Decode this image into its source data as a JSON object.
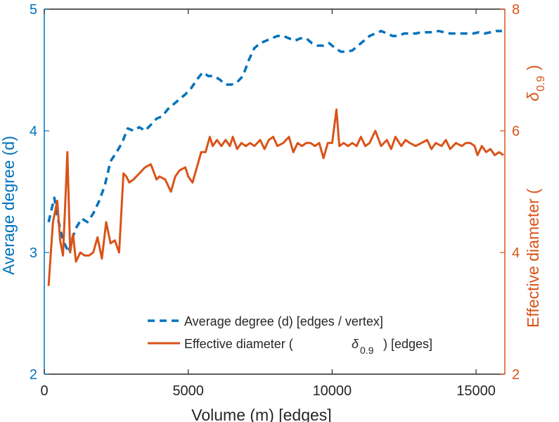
{
  "chart_data": {
    "type": "line",
    "xlabel": "Volume (m) [edges]",
    "ylabel_left": "Average degree (d)",
    "ylabel_right_prefix": "Effective diameter (",
    "ylabel_right_symbol": "δ",
    "ylabel_right_sub": "0.9",
    "ylabel_right_suffix": ")",
    "xlim": [
      0,
      16000
    ],
    "ylim_left": [
      2,
      5
    ],
    "ylim_right": [
      2,
      8
    ],
    "xticks": [
      0,
      5000,
      10000,
      15000
    ],
    "yticks_left": [
      2,
      3,
      4,
      5
    ],
    "yticks_right": [
      2,
      4,
      6,
      8
    ],
    "grid": false,
    "legend_position": "bottom-right",
    "colors": {
      "left": "#0072BD",
      "right": "#D95319",
      "axis": "#262626"
    },
    "series": [
      {
        "name": "Average degree (d) [edges / vertex]",
        "axis": "left",
        "style": "dashed",
        "color": "#0072BD",
        "x": [
          150,
          250,
          350,
          450,
          550,
          650,
          750,
          850,
          950,
          1100,
          1300,
          1500,
          1700,
          1900,
          2100,
          2300,
          2500,
          2700,
          2900,
          3100,
          3300,
          3500,
          3700,
          3900,
          4100,
          4300,
          4500,
          4700,
          4900,
          5100,
          5300,
          5500,
          5700,
          5900,
          6100,
          6300,
          6500,
          6700,
          6900,
          7100,
          7300,
          7500,
          7700,
          7900,
          8100,
          8300,
          8500,
          8700,
          8900,
          9100,
          9300,
          9500,
          9700,
          9900,
          10100,
          10300,
          10500,
          10700,
          10900,
          11100,
          11300,
          11500,
          11700,
          11900,
          12100,
          12300,
          12500,
          12700,
          12900,
          13100,
          13300,
          13500,
          13700,
          13900,
          14100,
          14300,
          14500,
          14700,
          14900,
          15100,
          15300,
          15500,
          15700,
          15900
        ],
        "y": [
          3.25,
          3.35,
          3.45,
          3.3,
          3.2,
          3.1,
          3.05,
          3.0,
          3.1,
          3.2,
          3.28,
          3.25,
          3.32,
          3.42,
          3.55,
          3.75,
          3.82,
          3.9,
          4.02,
          4.0,
          4.03,
          4.0,
          4.05,
          4.1,
          4.12,
          4.18,
          4.22,
          4.26,
          4.3,
          4.35,
          4.42,
          4.48,
          4.45,
          4.45,
          4.42,
          4.38,
          4.38,
          4.4,
          4.45,
          4.58,
          4.68,
          4.72,
          4.74,
          4.76,
          4.78,
          4.78,
          4.76,
          4.74,
          4.76,
          4.76,
          4.72,
          4.7,
          4.7,
          4.72,
          4.68,
          4.65,
          4.65,
          4.66,
          4.7,
          4.74,
          4.78,
          4.8,
          4.82,
          4.8,
          4.78,
          4.78,
          4.8,
          4.8,
          4.8,
          4.81,
          4.81,
          4.81,
          4.82,
          4.81,
          4.8,
          4.8,
          4.8,
          4.8,
          4.8,
          4.81,
          4.8,
          4.81,
          4.82,
          4.82
        ]
      },
      {
        "name_prefix": "Effective diameter (",
        "name_symbol": "δ",
        "name_sub": "0.9",
        "name_suffix": ") [edges]",
        "axis": "right",
        "style": "solid",
        "color": "#D95319",
        "x": [
          150,
          300,
          450,
          550,
          650,
          750,
          800,
          900,
          1000,
          1100,
          1250,
          1400,
          1550,
          1700,
          1850,
          2000,
          2150,
          2300,
          2450,
          2600,
          2750,
          2850,
          2950,
          3100,
          3300,
          3500,
          3700,
          3900,
          4000,
          4200,
          4400,
          4550,
          4700,
          4900,
          5000,
          5150,
          5300,
          5450,
          5600,
          5750,
          5850,
          6000,
          6150,
          6300,
          6450,
          6550,
          6700,
          6850,
          7000,
          7150,
          7300,
          7500,
          7650,
          7800,
          7950,
          8100,
          8300,
          8500,
          8650,
          8800,
          8950,
          9100,
          9250,
          9400,
          9550,
          9700,
          9850,
          10000,
          10150,
          10250,
          10400,
          10550,
          10700,
          10850,
          11000,
          11150,
          11300,
          11500,
          11700,
          11900,
          12050,
          12200,
          12400,
          12550,
          12700,
          12900,
          13100,
          13300,
          13450,
          13600,
          13800,
          13950,
          14100,
          14300,
          14500,
          14650,
          14800,
          14950,
          15050,
          15200,
          15350,
          15500,
          15650,
          15800,
          15950
        ],
        "y": [
          3.45,
          4.5,
          4.85,
          4.2,
          3.95,
          5.05,
          5.65,
          4.0,
          4.3,
          3.85,
          4.0,
          3.95,
          3.95,
          4.0,
          4.25,
          3.9,
          4.5,
          4.15,
          4.2,
          4.0,
          5.3,
          5.25,
          5.15,
          5.2,
          5.3,
          5.4,
          5.45,
          5.2,
          5.25,
          5.2,
          5.0,
          5.25,
          5.35,
          5.4,
          5.25,
          5.15,
          5.4,
          5.65,
          5.65,
          5.9,
          5.75,
          5.85,
          5.75,
          5.85,
          5.75,
          5.9,
          5.7,
          5.8,
          5.75,
          5.8,
          5.75,
          5.85,
          5.7,
          5.85,
          5.9,
          5.75,
          5.8,
          5.9,
          5.65,
          5.8,
          5.75,
          5.8,
          5.8,
          5.75,
          5.8,
          5.55,
          5.8,
          5.8,
          6.35,
          5.75,
          5.8,
          5.75,
          5.8,
          5.75,
          5.9,
          5.75,
          5.8,
          6.0,
          5.75,
          5.85,
          5.7,
          5.9,
          5.75,
          5.85,
          5.8,
          5.75,
          5.8,
          5.85,
          5.7,
          5.8,
          5.75,
          5.85,
          5.7,
          5.8,
          5.75,
          5.8,
          5.8,
          5.75,
          5.6,
          5.75,
          5.65,
          5.7,
          5.6,
          5.65,
          5.6
        ]
      }
    ]
  }
}
